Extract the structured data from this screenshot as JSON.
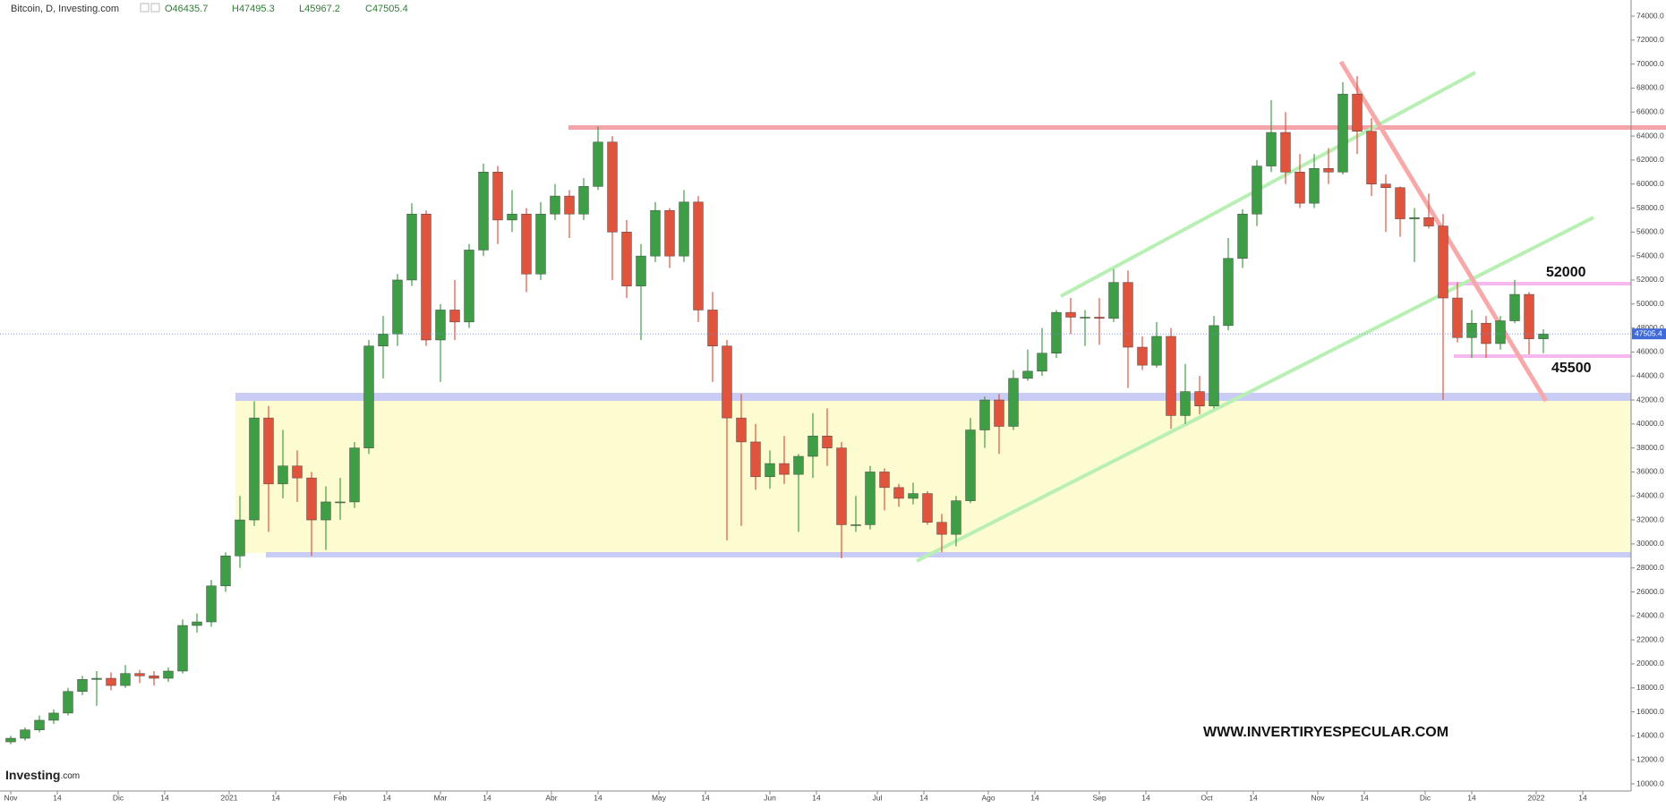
{
  "chart_data": {
    "type": "candlestick",
    "title": "Bitcoin, D, Investing.com",
    "ohlc_labels": [
      "O46435.7",
      "H47495.3",
      "L45967.2",
      "C47505.4"
    ],
    "annotations": [
      "52000",
      "45500",
      "WWW.INVERTIRYESPECULAR.COM"
    ],
    "logo": "Investing",
    "logo_suffix": ".com",
    "last_price": 47505.4,
    "up_color": "#3e9e45",
    "down_color": "#e0543e",
    "x": [
      0,
      4,
      8,
      12,
      16,
      20,
      24,
      28,
      32,
      36,
      40,
      44,
      48,
      52,
      56,
      60,
      64,
      68,
      72,
      76,
      80,
      84,
      88,
      92,
      96,
      100,
      104,
      108,
      112,
      116,
      120,
      124,
      128,
      132,
      136,
      140,
      144,
      148,
      152,
      156,
      160,
      164,
      168,
      172,
      176,
      180,
      184,
      188,
      192,
      196,
      200,
      204,
      208,
      212,
      216,
      220,
      224,
      228,
      232,
      236,
      240,
      244,
      248,
      252,
      256,
      260,
      264,
      268,
      272,
      276,
      280,
      284,
      288,
      292,
      296,
      300,
      304,
      308,
      312,
      316,
      320,
      324,
      328,
      332,
      336,
      340,
      344,
      348,
      352,
      356,
      360,
      364,
      368,
      372,
      376,
      380,
      384,
      388,
      392,
      396,
      400,
      404,
      408,
      412,
      416,
      420,
      424,
      428
    ],
    "open": [
      13500,
      13800,
      14500,
      15300,
      15900,
      17700,
      18700,
      18800,
      18200,
      19200,
      19000,
      18800,
      19400,
      23200,
      23500,
      26500,
      29000,
      32000,
      40500,
      35000,
      36500,
      35500,
      32000,
      33500,
      33500,
      38000,
      46500,
      47500,
      52000,
      57500,
      47000,
      49500,
      48500,
      54500,
      61000,
      57000,
      57500,
      52500,
      57500,
      59000,
      57500,
      59800,
      63500,
      56000,
      51500,
      54000,
      57800,
      54000,
      58500,
      49500,
      46500,
      40500,
      38500,
      35600,
      36700,
      35800,
      37300,
      39000,
      38000,
      31600,
      31600,
      36000,
      34700,
      33800,
      34200,
      31800,
      30800,
      33600,
      39500,
      42000,
      39800,
      43800,
      44400,
      45900,
      49300,
      48900,
      48900,
      48800,
      51800,
      46400,
      44900,
      47300,
      40700,
      42700,
      41500,
      48200,
      53800,
      57500,
      61500,
      64300,
      61000,
      58400,
      61300,
      61000,
      67500,
      64400,
      60000,
      59700,
      57100,
      57200,
      56500,
      50500,
      47200,
      48400,
      46700,
      48600,
      50800,
      47100
    ],
    "high": [
      14000,
      14700,
      15700,
      16200,
      18000,
      19000,
      19400,
      19300,
      19900,
      19500,
      19400,
      19700,
      23700,
      24200,
      27000,
      29300,
      34000,
      41900,
      41500,
      39500,
      37800,
      36000,
      34800,
      35500,
      38500,
      47000,
      49000,
      52500,
      58400,
      57800,
      50000,
      52000,
      55000,
      61700,
      61500,
      59500,
      58000,
      58500,
      60000,
      59500,
      60500,
      64800,
      64000,
      57000,
      55000,
      58500,
      58000,
      59500,
      59000,
      51000,
      47000,
      42500,
      40000,
      37800,
      39000,
      37500,
      40900,
      41300,
      38500,
      34000,
      36500,
      36300,
      35000,
      35100,
      34400,
      32500,
      34000,
      40500,
      42300,
      42500,
      44500,
      46200,
      48000,
      49500,
      50500,
      49500,
      50500,
      52900,
      52800,
      47300,
      48500,
      48000,
      45000,
      44000,
      49000,
      55500,
      57900,
      62000,
      67000,
      66000,
      62500,
      62500,
      63000,
      68500,
      69000,
      65500,
      60800,
      59800,
      58000,
      59200,
      57500,
      51800,
      49500,
      49000,
      49000,
      52000,
      51000,
      47900
    ],
    "low": [
      13300,
      13600,
      14300,
      15000,
      15700,
      17400,
      16500,
      17800,
      18000,
      18400,
      18200,
      18500,
      19200,
      22600,
      23100,
      26000,
      28000,
      31500,
      31000,
      33800,
      33500,
      29000,
      29500,
      32000,
      33000,
      37500,
      43800,
      46500,
      51500,
      46500,
      43500,
      47000,
      48000,
      54000,
      55000,
      56000,
      51000,
      52000,
      57000,
      55500,
      57000,
      59500,
      52000,
      50500,
      47000,
      53500,
      53000,
      53500,
      48500,
      43500,
      30300,
      31500,
      34500,
      34600,
      35000,
      31000,
      35500,
      36500,
      28800,
      31000,
      31200,
      32800,
      33100,
      33300,
      31600,
      29300,
      29800,
      33400,
      38000,
      37500,
      39500,
      43600,
      44000,
      45500,
      47500,
      46500,
      46600,
      48500,
      43000,
      44500,
      44700,
      39600,
      40000,
      40800,
      41300,
      47800,
      53000,
      56500,
      61000,
      60000,
      58000,
      58000,
      60000,
      60800,
      62500,
      59000,
      56000,
      55600,
      53500,
      56300,
      42000,
      46800,
      45500,
      45500,
      46200,
      48400,
      45800,
      45900
    ],
    "close": [
      13800,
      14500,
      15300,
      15900,
      17700,
      18700,
      18800,
      18200,
      19200,
      19000,
      18800,
      19400,
      23200,
      23500,
      26500,
      29000,
      32000,
      40500,
      35000,
      36500,
      35500,
      32000,
      33500,
      33500,
      38000,
      46500,
      47500,
      52000,
      57500,
      47000,
      49500,
      48500,
      54500,
      61000,
      57000,
      57500,
      52500,
      57500,
      59000,
      57500,
      59800,
      63500,
      56000,
      51500,
      54000,
      57800,
      54000,
      58500,
      49500,
      46500,
      40500,
      38500,
      35600,
      36700,
      35800,
      37300,
      39000,
      38000,
      31600,
      31600,
      36000,
      34700,
      33800,
      34200,
      31800,
      30800,
      33600,
      39500,
      42000,
      39800,
      43800,
      44400,
      45900,
      49300,
      48900,
      48900,
      48800,
      51800,
      46400,
      44900,
      47300,
      40700,
      42700,
      41500,
      48200,
      53800,
      57500,
      61500,
      64300,
      61000,
      58400,
      61300,
      61000,
      67500,
      64400,
      60000,
      59700,
      57100,
      57200,
      56500,
      50500,
      47200,
      48400,
      46700,
      48600,
      50800,
      47100,
      47500
    ],
    "xlim": [
      -3,
      452.5
    ],
    "xticks": [
      {
        "value": 0,
        "label": "Nov"
      },
      {
        "value": 13,
        "label": "14"
      },
      {
        "value": 30,
        "label": "Dic"
      },
      {
        "value": 43,
        "label": "14"
      },
      {
        "value": 61,
        "label": "2021"
      },
      {
        "value": 74,
        "label": "14"
      },
      {
        "value": 92,
        "label": "Feb"
      },
      {
        "value": 105,
        "label": "14"
      },
      {
        "value": 120,
        "label": "Mar"
      },
      {
        "value": 133,
        "label": "14"
      },
      {
        "value": 151,
        "label": "Abr"
      },
      {
        "value": 164,
        "label": "14"
      },
      {
        "value": 181,
        "label": "May"
      },
      {
        "value": 194,
        "label": "14"
      },
      {
        "value": 212,
        "label": "Jun"
      },
      {
        "value": 225,
        "label": "14"
      },
      {
        "value": 242,
        "label": "Jul"
      },
      {
        "value": 255,
        "label": "14"
      },
      {
        "value": 273,
        "label": "Ago"
      },
      {
        "value": 286,
        "label": "14"
      },
      {
        "value": 304,
        "label": "Sep"
      },
      {
        "value": 317,
        "label": "14"
      },
      {
        "value": 334,
        "label": "Oct"
      },
      {
        "value": 347,
        "label": "14"
      },
      {
        "value": 365,
        "label": "Nov"
      },
      {
        "value": 378,
        "label": "14"
      },
      {
        "value": 395,
        "label": "Dic"
      },
      {
        "value": 408,
        "label": "14"
      },
      {
        "value": 426,
        "label": "2022"
      },
      {
        "value": 439,
        "label": "14"
      }
    ],
    "ylim": [
      10000,
      74000
    ],
    "yticks": [
      {
        "value": 10000,
        "label": "10000.0"
      },
      {
        "value": 12000,
        "label": "12000.0"
      },
      {
        "value": 14000,
        "label": "14000.0"
      },
      {
        "value": 16000,
        "label": "16000.0"
      },
      {
        "value": 18000,
        "label": "18000.0"
      },
      {
        "value": 20000,
        "label": "20000.0"
      },
      {
        "value": 22000,
        "label": "22000.0"
      },
      {
        "value": 24000,
        "label": "24000.0"
      },
      {
        "value": 26000,
        "label": "26000.0"
      },
      {
        "value": 28000,
        "label": "28000.0"
      },
      {
        "value": 30000,
        "label": "30000.0"
      },
      {
        "value": 32000,
        "label": "32000.0"
      },
      {
        "value": 34000,
        "label": "34000.0"
      },
      {
        "value": 36000,
        "label": "36000.0"
      },
      {
        "value": 38000,
        "label": "38000.0"
      },
      {
        "value": 40000,
        "label": "40000.0"
      },
      {
        "value": 42000,
        "label": "42000.0"
      },
      {
        "value": 44000,
        "label": "44000.0"
      },
      {
        "value": 46000,
        "label": "46000.0"
      },
      {
        "value": 48000,
        "label": "48000.0"
      },
      {
        "value": 50000,
        "label": "50000.0"
      },
      {
        "value": 52000,
        "label": "52000.0"
      },
      {
        "value": 54000,
        "label": "54000.0"
      },
      {
        "value": 56000,
        "label": "56000.0"
      },
      {
        "value": 58000,
        "label": "58000.0"
      },
      {
        "value": 60000,
        "label": "60000.0"
      },
      {
        "value": 62000,
        "label": "62000.0"
      },
      {
        "value": 64000,
        "label": "64000.0"
      },
      {
        "value": 66000,
        "label": "66000.0"
      },
      {
        "value": 68000,
        "label": "68000.0"
      },
      {
        "value": 70000,
        "label": "70000.0"
      },
      {
        "value": 72000,
        "label": "72000.0"
      },
      {
        "value": 74000,
        "label": "74000.0"
      }
    ]
  }
}
